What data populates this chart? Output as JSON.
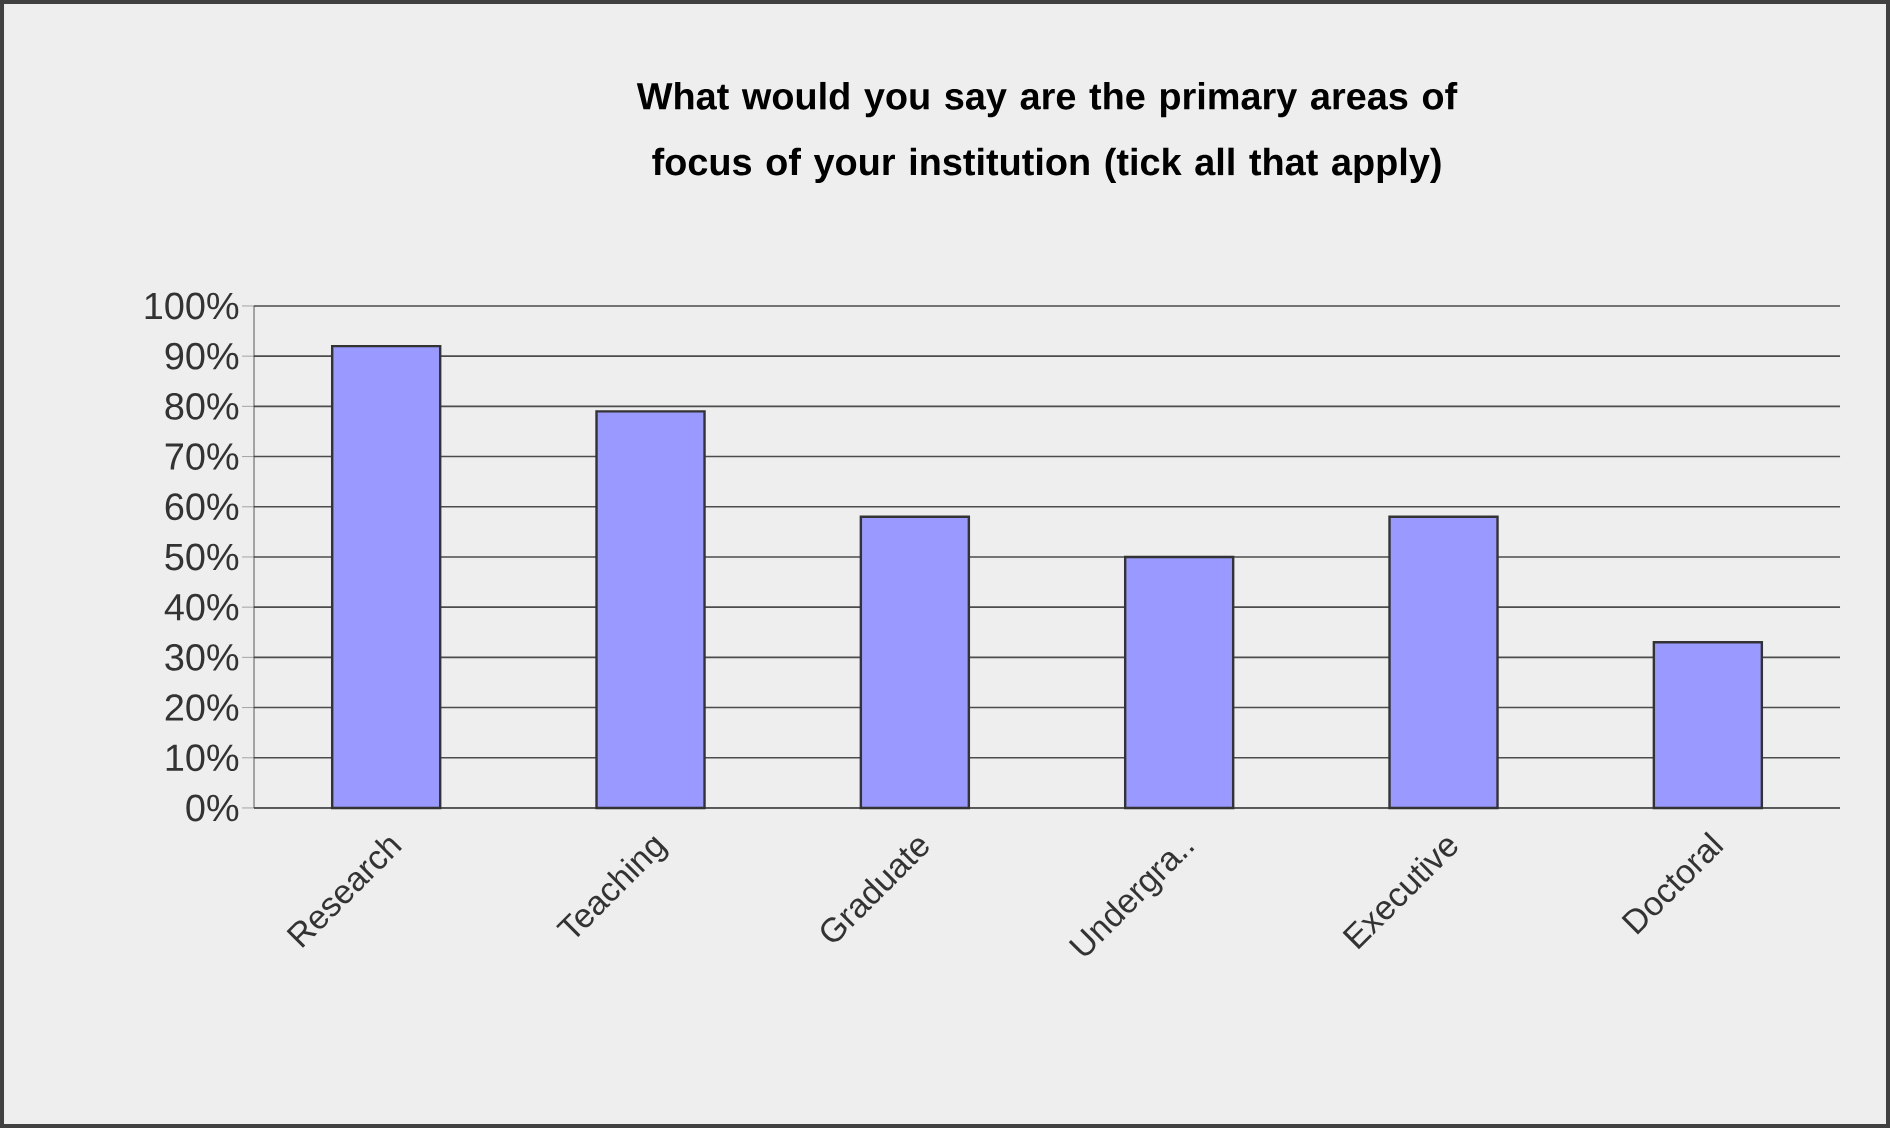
{
  "chart_data": {
    "type": "bar",
    "title": "What would you say are the primary areas of focus of your institution (tick all that apply)",
    "categories": [
      "Research",
      "Teaching",
      "Graduate",
      "Undergra..",
      "Executive",
      "Doctoral"
    ],
    "values": [
      92,
      79,
      58,
      50,
      58,
      33
    ],
    "color": "#9999ff",
    "ylim": [
      0,
      100
    ],
    "yticks": [
      {
        "value": 0,
        "label": "0%"
      },
      {
        "value": 10,
        "label": "10%"
      },
      {
        "value": 20,
        "label": "20%"
      },
      {
        "value": 30,
        "label": "30%"
      },
      {
        "value": 40,
        "label": "40%"
      },
      {
        "value": 50,
        "label": "50%"
      },
      {
        "value": 60,
        "label": "60%"
      },
      {
        "value": 70,
        "label": "70%"
      },
      {
        "value": 80,
        "label": "80%"
      },
      {
        "value": 90,
        "label": "90%"
      },
      {
        "value": 100,
        "label": "100%"
      }
    ],
    "grid": "y"
  }
}
